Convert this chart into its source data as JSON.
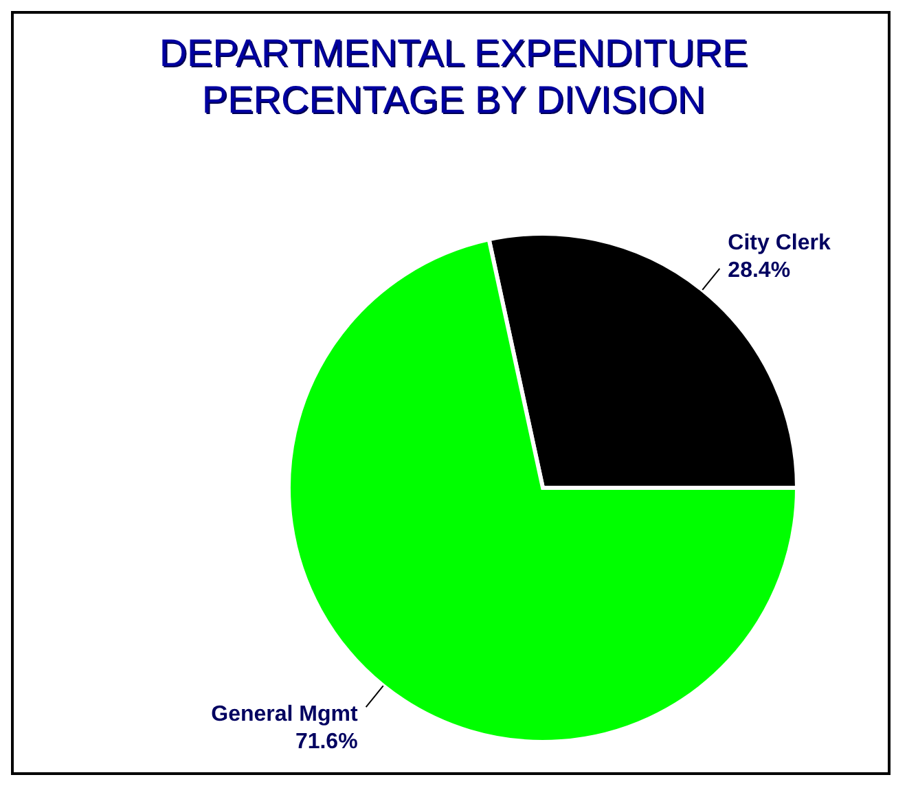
{
  "chart_data": {
    "type": "pie",
    "title": "DEPARTMENTAL EXPENDITURE PERCENTAGE BY DIVISION",
    "categories": [
      "City Clerk",
      "General Mgmt"
    ],
    "values": [
      28.4,
      71.6
    ],
    "colors": [
      "#000000",
      "#00ff00"
    ],
    "value_labels": [
      "28.4%",
      "71.6%"
    ]
  }
}
